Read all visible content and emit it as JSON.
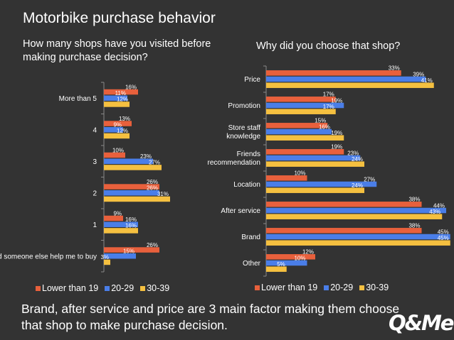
{
  "slide": {
    "title": "Motorbike purchase behavior",
    "conclusion": "Brand, after service and price are 3 main factor making them choose that shop to make purchase decision.",
    "logo": "Q&Me"
  },
  "colors": {
    "background": "#333333",
    "series": [
      "#e8603c",
      "#4a7ee8",
      "#f5c040"
    ],
    "text": "#ffffff"
  },
  "chart_data": [
    {
      "type": "bar",
      "orientation": "horizontal",
      "title": "How many shops have you visited before making purchase decision?",
      "categories": [
        "More than 5",
        "4",
        "3",
        "2",
        "1",
        "I asked someone else help me to buy"
      ],
      "series": [
        {
          "name": "Lower than 19",
          "values": [
            16,
            13,
            10,
            26,
            9,
            26
          ]
        },
        {
          "name": "20-29",
          "values": [
            11,
            9,
            23,
            26,
            16,
            15
          ]
        },
        {
          "name": "30-39",
          "values": [
            12,
            12,
            27,
            31,
            16,
            3
          ]
        }
      ],
      "value_suffix": "%",
      "legend": "bottom"
    },
    {
      "type": "bar",
      "orientation": "horizontal",
      "title": "Why did you choose that shop?",
      "categories": [
        "Price",
        "Promotion",
        "Store staff knowledge",
        "Friends recommendation",
        "Location",
        "After service",
        "Brand",
        "Other"
      ],
      "series": [
        {
          "name": "Lower than 19",
          "values": [
            33,
            17,
            15,
            19,
            10,
            38,
            38,
            12
          ]
        },
        {
          "name": "20-29",
          "values": [
            39,
            19,
            16,
            23,
            27,
            44,
            45,
            10
          ]
        },
        {
          "name": "30-39",
          "values": [
            41,
            17,
            19,
            24,
            24,
            43,
            45,
            5
          ]
        }
      ],
      "value_suffix": "%",
      "legend": "bottom"
    }
  ]
}
